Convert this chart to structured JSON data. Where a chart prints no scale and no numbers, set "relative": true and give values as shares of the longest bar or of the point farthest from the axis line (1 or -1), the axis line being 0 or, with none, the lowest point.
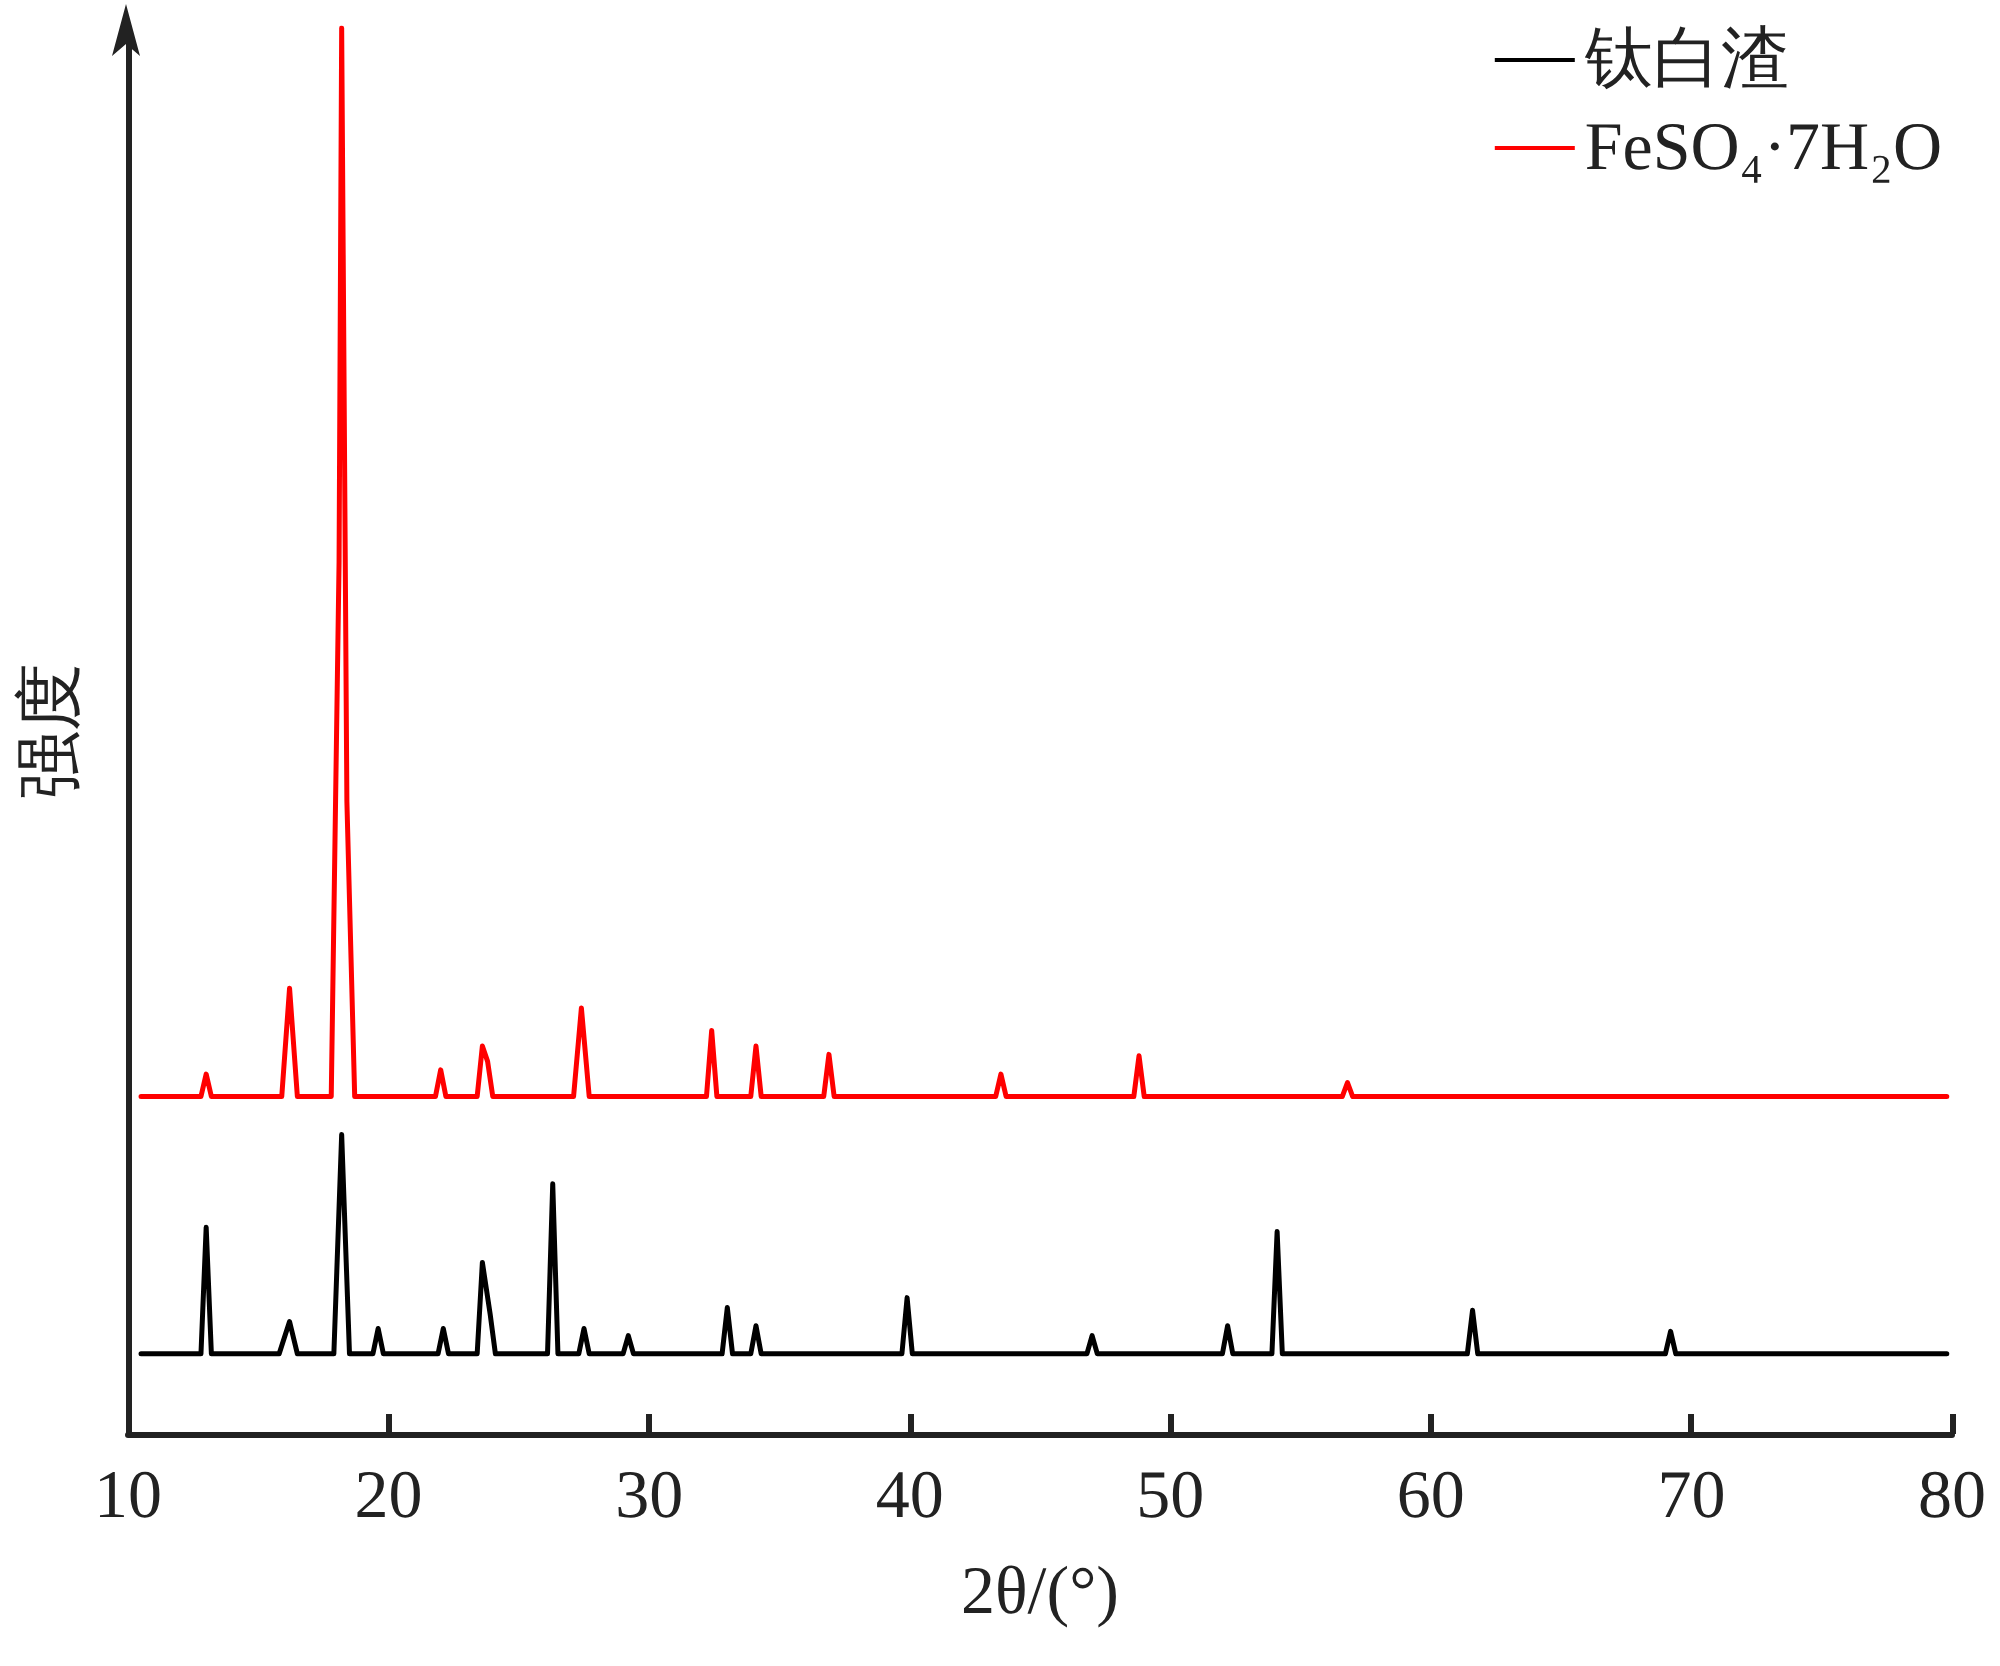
{
  "chart_data": {
    "type": "line",
    "xlabel": "2θ/(°)",
    "ylabel": "强度",
    "relative": true,
    "xlim": [
      10,
      80
    ],
    "xticks": [
      10,
      20,
      30,
      40,
      50,
      60,
      70,
      80
    ],
    "grid": false,
    "legend": "top right",
    "marker": "none",
    "line_style": "solid",
    "series": [
      {
        "name": "钛白渣",
        "color": "#000000",
        "x": [
          10.5,
          12.8,
          13.0,
          13.2,
          15.8,
          16.2,
          16.5,
          17.9,
          18.2,
          18.5,
          19.4,
          19.6,
          19.8,
          21.9,
          22.1,
          22.3,
          23.4,
          23.6,
          23.9,
          24.1,
          26.1,
          26.3,
          26.5,
          27.3,
          27.5,
          27.7,
          29.0,
          29.2,
          29.4,
          32.8,
          33.0,
          33.2,
          33.9,
          34.1,
          34.3,
          39.7,
          39.9,
          40.1,
          46.8,
          47.0,
          47.2,
          52.0,
          52.2,
          52.4,
          53.9,
          54.1,
          54.3,
          61.4,
          61.6,
          61.8,
          69.0,
          69.2,
          69.4,
          79.8
        ],
        "values": [
          0.057,
          0.057,
          0.147,
          0.057,
          0.057,
          0.08,
          0.057,
          0.057,
          0.213,
          0.057,
          0.057,
          0.075,
          0.057,
          0.057,
          0.075,
          0.057,
          0.057,
          0.122,
          0.085,
          0.057,
          0.057,
          0.178,
          0.057,
          0.057,
          0.075,
          0.057,
          0.057,
          0.07,
          0.057,
          0.057,
          0.09,
          0.057,
          0.057,
          0.077,
          0.057,
          0.057,
          0.097,
          0.057,
          0.057,
          0.07,
          0.057,
          0.057,
          0.077,
          0.057,
          0.057,
          0.144,
          0.057,
          0.057,
          0.088,
          0.057,
          0.057,
          0.073,
          0.057,
          0.057
        ]
      },
      {
        "name": "FeSO₄·7H₂O",
        "color": "#ff0000",
        "x": [
          10.5,
          12.8,
          13.0,
          13.2,
          15.9,
          16.2,
          16.5,
          17.8,
          18.1,
          18.2,
          18.4,
          18.7,
          21.8,
          22.0,
          22.2,
          23.4,
          23.6,
          23.8,
          24.0,
          27.1,
          27.4,
          27.7,
          32.2,
          32.4,
          32.6,
          33.9,
          34.1,
          34.3,
          36.7,
          36.9,
          37.1,
          43.3,
          43.5,
          43.7,
          48.6,
          48.8,
          49.0,
          56.6,
          56.8,
          57.0,
          79.8
        ],
        "values": [
          0.24,
          0.24,
          0.256,
          0.24,
          0.24,
          0.317,
          0.24,
          0.24,
          0.62,
          1.0,
          0.45,
          0.24,
          0.24,
          0.259,
          0.24,
          0.24,
          0.276,
          0.265,
          0.24,
          0.24,
          0.303,
          0.24,
          0.24,
          0.287,
          0.24,
          0.24,
          0.276,
          0.24,
          0.24,
          0.27,
          0.24,
          0.24,
          0.256,
          0.24,
          0.24,
          0.269,
          0.24,
          0.24,
          0.25,
          0.24,
          0.24
        ]
      }
    ]
  }
}
